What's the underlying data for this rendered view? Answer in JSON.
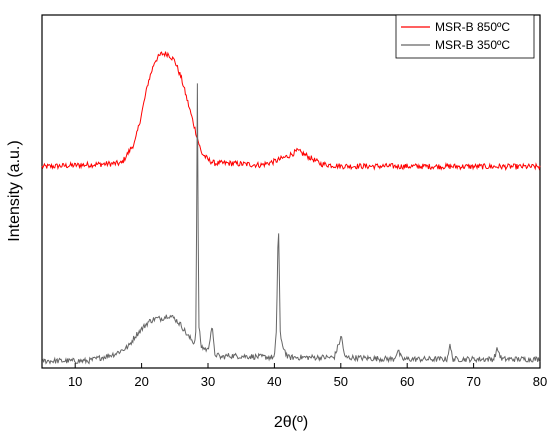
{
  "chart_data": {
    "type": "line",
    "xlabel": "2θ(º)",
    "ylabel": "Intensity (a.u.)",
    "xlim": [
      5,
      80
    ],
    "x_ticks": [
      10,
      20,
      30,
      40,
      50,
      60,
      70,
      80
    ],
    "y_ticks_labeled": false,
    "grid": false,
    "legend_position": "top-right",
    "series": [
      {
        "name": "MSR-B 850ºC",
        "color": "#ff0000",
        "baseline": 0.57,
        "noise": 0.008,
        "points": [
          [
            5,
            0.57
          ],
          [
            17,
            0.58
          ],
          [
            19,
            0.64
          ],
          [
            20,
            0.72
          ],
          [
            21,
            0.81
          ],
          [
            22,
            0.87
          ],
          [
            23,
            0.89
          ],
          [
            24,
            0.89
          ],
          [
            25,
            0.87
          ],
          [
            26,
            0.82
          ],
          [
            27,
            0.75
          ],
          [
            28,
            0.68
          ],
          [
            29,
            0.61
          ],
          [
            30,
            0.59
          ],
          [
            31,
            0.58
          ],
          [
            33,
            0.58
          ],
          [
            38,
            0.575
          ],
          [
            40,
            0.585
          ],
          [
            42,
            0.6
          ],
          [
            43.5,
            0.615
          ],
          [
            45,
            0.6
          ],
          [
            47,
            0.578
          ],
          [
            50,
            0.572
          ],
          [
            80,
            0.57
          ]
        ]
      },
      {
        "name": "MSR-B 350ºC",
        "color": "#666666",
        "baseline": 0.025,
        "noise": 0.008,
        "points": [
          [
            5,
            0.02
          ],
          [
            12,
            0.02
          ],
          [
            16,
            0.04
          ],
          [
            18,
            0.06
          ],
          [
            19,
            0.09
          ],
          [
            20,
            0.11
          ],
          [
            21,
            0.13
          ],
          [
            22,
            0.14
          ],
          [
            23,
            0.14
          ],
          [
            24,
            0.15
          ],
          [
            25,
            0.14
          ],
          [
            26,
            0.12
          ],
          [
            27,
            0.09
          ],
          [
            28,
            0.07
          ],
          [
            28.2,
            0.12
          ],
          [
            28.4,
            0.8
          ],
          [
            28.6,
            0.12
          ],
          [
            29,
            0.06
          ],
          [
            30,
            0.05
          ],
          [
            30.6,
            0.12
          ],
          [
            31,
            0.04
          ],
          [
            32,
            0.03
          ],
          [
            33,
            0.035
          ],
          [
            40,
            0.03
          ],
          [
            40.3,
            0.1
          ],
          [
            40.6,
            0.43
          ],
          [
            40.9,
            0.08
          ],
          [
            42,
            0.03
          ],
          [
            49,
            0.03
          ],
          [
            50.1,
            0.09
          ],
          [
            50.6,
            0.03
          ],
          [
            58,
            0.025
          ],
          [
            58.6,
            0.05
          ],
          [
            59.2,
            0.025
          ],
          [
            66,
            0.025
          ],
          [
            66.4,
            0.065
          ],
          [
            66.9,
            0.025
          ],
          [
            73,
            0.025
          ],
          [
            73.6,
            0.055
          ],
          [
            74.2,
            0.025
          ],
          [
            80,
            0.025
          ]
        ]
      }
    ]
  }
}
